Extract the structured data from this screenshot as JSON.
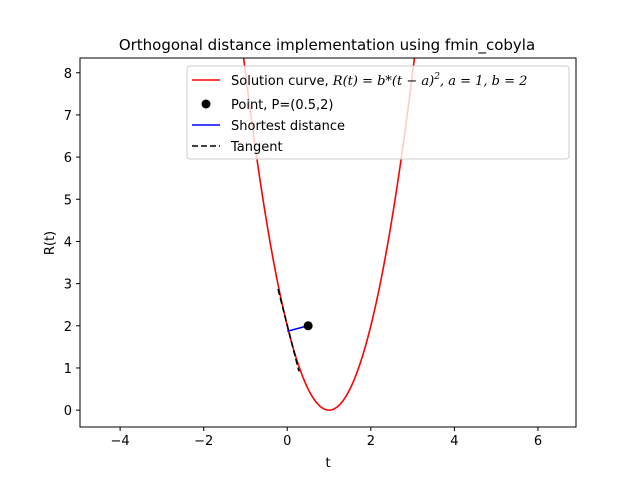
{
  "chart_data": {
    "type": "line",
    "title": "Orthogonal distance implementation using fmin_cobyla",
    "xlabel": "t",
    "ylabel": "R(t)",
    "xlim": [
      -4.96,
      6.91
    ],
    "ylim": [
      -0.4,
      8.35
    ],
    "xticks": [
      -4,
      -2,
      0,
      2,
      4,
      6
    ],
    "yticks": [
      0,
      1,
      2,
      3,
      4,
      5,
      6,
      7,
      8
    ],
    "grid": false,
    "legend_position": "top-right",
    "colors": {
      "curve": "#ff0000",
      "point": "#000000",
      "shortest": "#0000ff",
      "tangent": "#000000"
    },
    "curve": {
      "a": 1,
      "b": 2,
      "t_range": [
        -1.2,
        3.2
      ]
    },
    "point": {
      "x": 0.5,
      "y": 2
    },
    "shortest_distance": {
      "x": [
        0.5,
        0.0
      ],
      "y": [
        2.0,
        1.87
      ]
    },
    "tangent": {
      "x": [
        -0.22,
        0.28
      ],
      "y": [
        2.87,
        0.92
      ]
    },
    "legend": [
      {
        "key": "curve",
        "label_prefix": "Solution curve, ",
        "label_formula_lhs": "R(t) = b*(t − a)",
        "label_formula_exp": "2",
        "label_params": ",    a = 1,    b = 2"
      },
      {
        "key": "point",
        "label": "Point, P=(0.5,2)"
      },
      {
        "key": "shortest",
        "label": "Shortest distance"
      },
      {
        "key": "tangent",
        "label": "Tangent"
      }
    ]
  }
}
